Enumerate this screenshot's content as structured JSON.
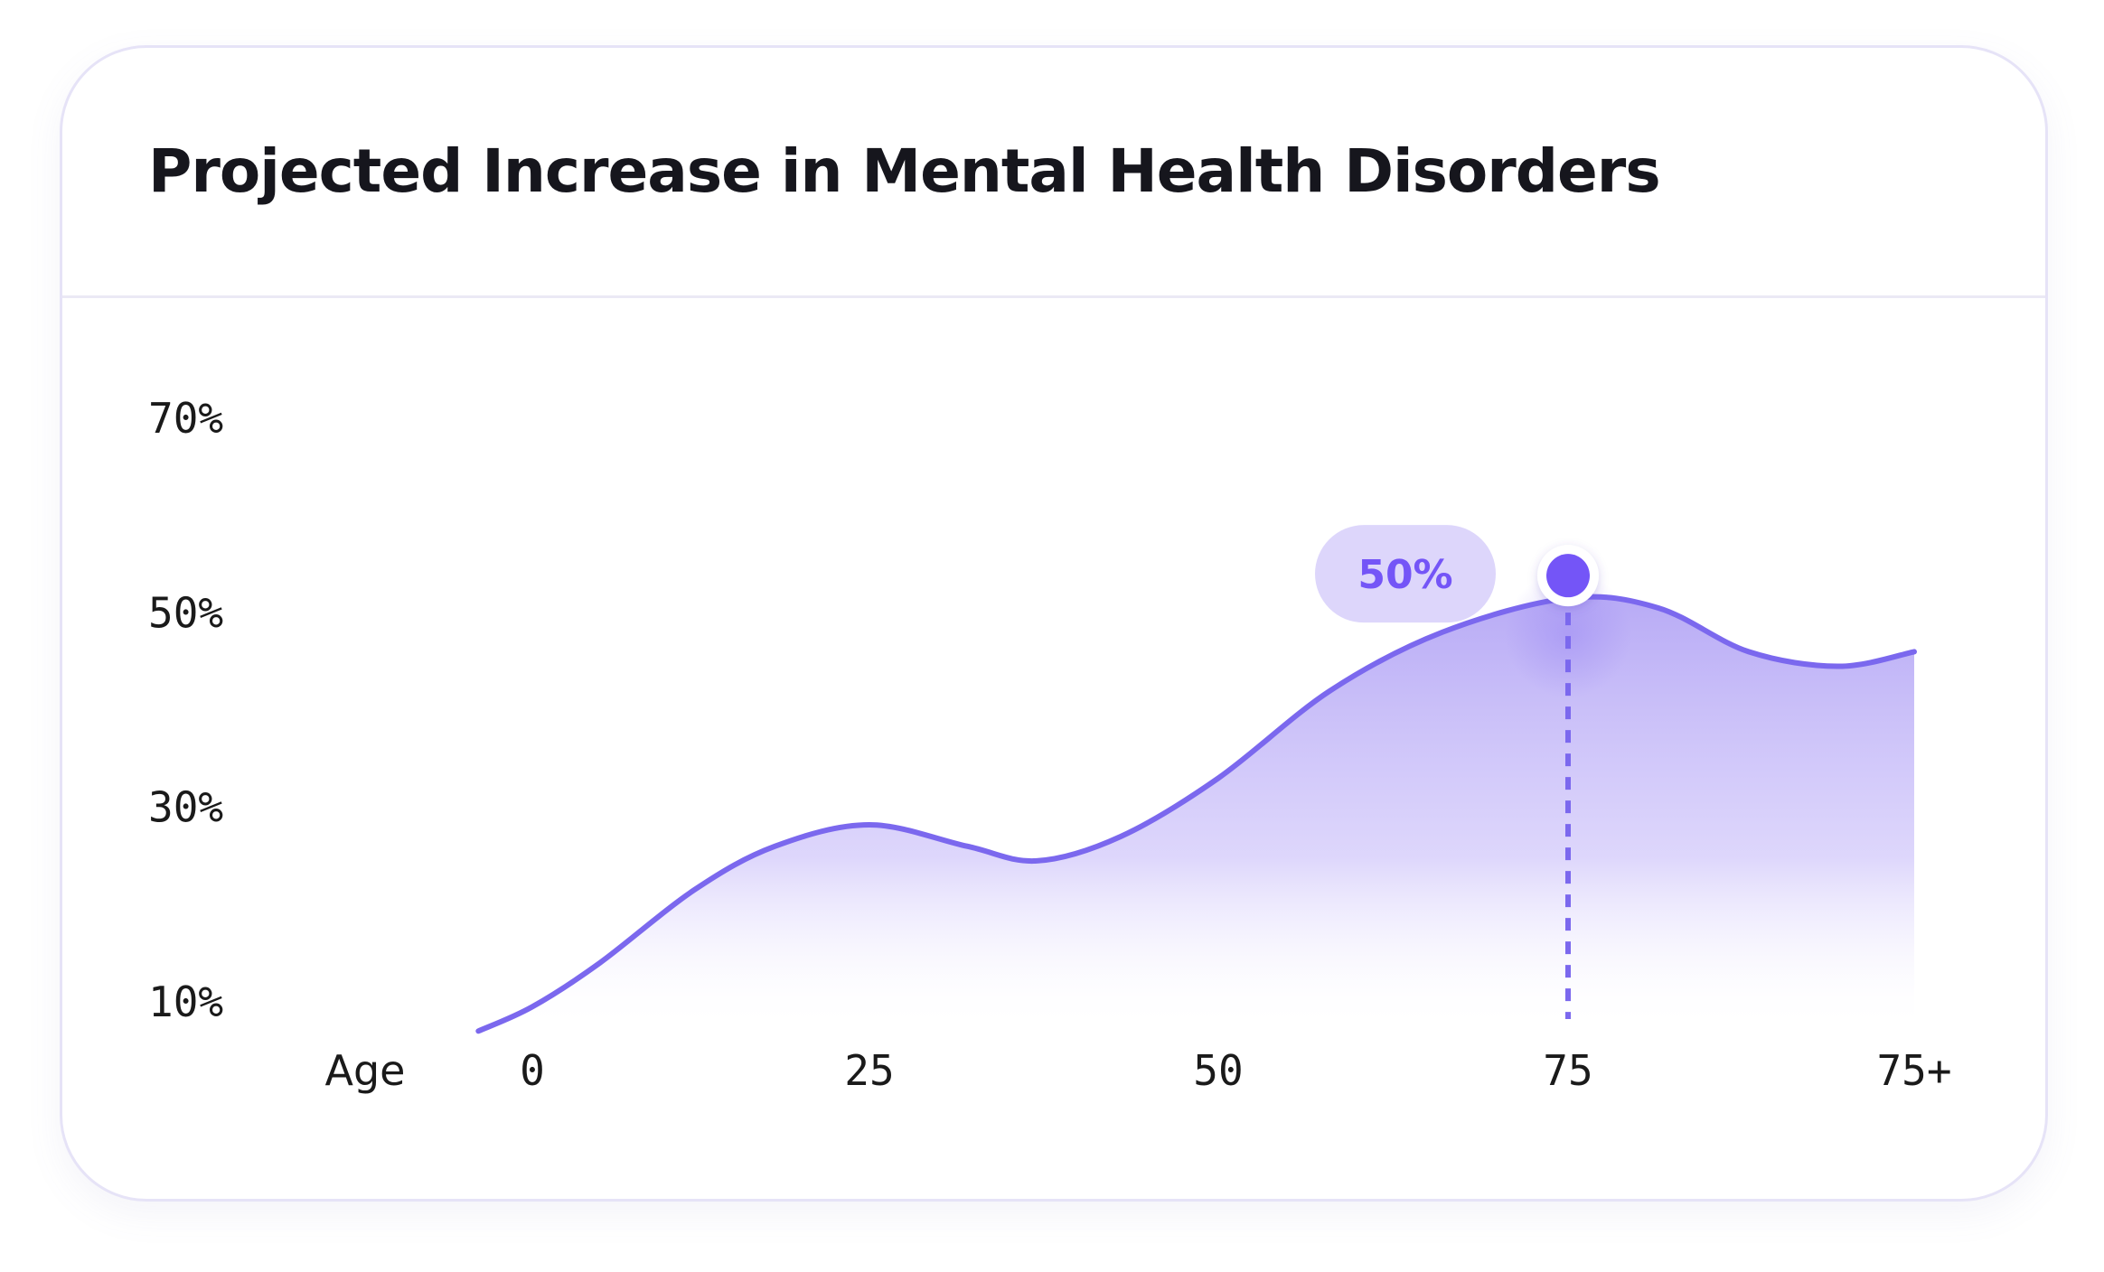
{
  "card": {
    "title": "Projected Increase in Mental Health Disorders"
  },
  "chart_data": {
    "type": "area",
    "title": "Projected Increase in Mental Health Disorders",
    "xlabel": "Age",
    "ylabel": "",
    "x_ticks": [
      "0",
      "25",
      "50",
      "75",
      "75+"
    ],
    "y_ticks": [
      "10%",
      "30%",
      "50%",
      "70%"
    ],
    "y_tick_values": [
      10,
      30,
      50,
      70
    ],
    "ylim": [
      10,
      70
    ],
    "series": [
      {
        "points": [
          {
            "x": -4,
            "y": 7.0
          },
          {
            "x": 0,
            "y": 9.5
          },
          {
            "x": 5,
            "y": 14.0
          },
          {
            "x": 12,
            "y": 21.5
          },
          {
            "x": 18,
            "y": 26.0
          },
          {
            "x": 25,
            "y": 28.2
          },
          {
            "x": 32,
            "y": 26.0
          },
          {
            "x": 37,
            "y": 24.5
          },
          {
            "x": 43,
            "y": 27.0
          },
          {
            "x": 50,
            "y": 33.0
          },
          {
            "x": 58,
            "y": 42.0
          },
          {
            "x": 66,
            "y": 48.0
          },
          {
            "x": 75,
            "y": 51.5
          },
          {
            "x": 81,
            "y": 50.5
          },
          {
            "x": 87,
            "y": 46.0
          },
          {
            "x": 93,
            "y": 44.5
          },
          {
            "x": 98,
            "y": 46.0
          }
        ]
      }
    ],
    "highlight": {
      "x": 75,
      "label": "50%"
    },
    "grid": false,
    "colors": {
      "line": "#7b68ee",
      "fill": "#b4a6f5",
      "marker": "#7455f7",
      "tooltip_bg": "#ddd6fb",
      "tooltip_text": "#7455f7"
    }
  }
}
